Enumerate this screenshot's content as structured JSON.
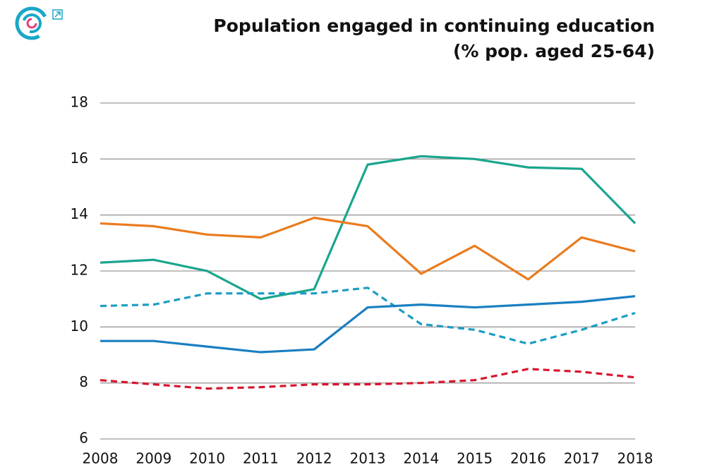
{
  "chart_data": {
    "type": "line",
    "title": "Population engaged in continuing education",
    "subtitle": "(% pop. aged 25-64)",
    "x": [
      2008,
      2009,
      2010,
      2011,
      2012,
      2013,
      2014,
      2015,
      2016,
      2017,
      2018
    ],
    "xlim": [
      2008,
      2018
    ],
    "xticks": [
      2008,
      2009,
      2010,
      2011,
      2012,
      2013,
      2014,
      2015,
      2016,
      2017,
      2018
    ],
    "ylim": [
      6,
      18
    ],
    "yticks": [
      6,
      8,
      10,
      12,
      14,
      16,
      18
    ],
    "grid": true,
    "series": [
      {
        "color": "#1aa58e",
        "dash": false,
        "values": [
          12.3,
          12.4,
          12.0,
          11.0,
          11.35,
          15.8,
          16.1,
          16.0,
          15.7,
          15.65,
          13.7
        ]
      },
      {
        "color": "#ea7b1e",
        "dash": false,
        "values": [
          13.7,
          13.6,
          13.3,
          13.2,
          13.9,
          13.6,
          11.9,
          12.9,
          11.7,
          13.2,
          12.7
        ]
      },
      {
        "color": "#1c9dc4",
        "dash": true,
        "values": [
          10.75,
          10.8,
          11.2,
          11.2,
          11.2,
          11.4,
          10.1,
          9.9,
          9.4,
          9.9,
          10.5
        ]
      },
      {
        "color": "#1a7fc1",
        "dash": false,
        "values": [
          9.5,
          9.5,
          9.3,
          9.1,
          9.2,
          10.7,
          10.8,
          10.7,
          10.8,
          10.9,
          11.1
        ]
      },
      {
        "color": "#d7152d",
        "dash": true,
        "values": [
          8.1,
          7.95,
          7.8,
          7.85,
          7.95,
          7.95,
          8.0,
          8.1,
          8.5,
          8.4,
          8.2
        ]
      }
    ]
  }
}
